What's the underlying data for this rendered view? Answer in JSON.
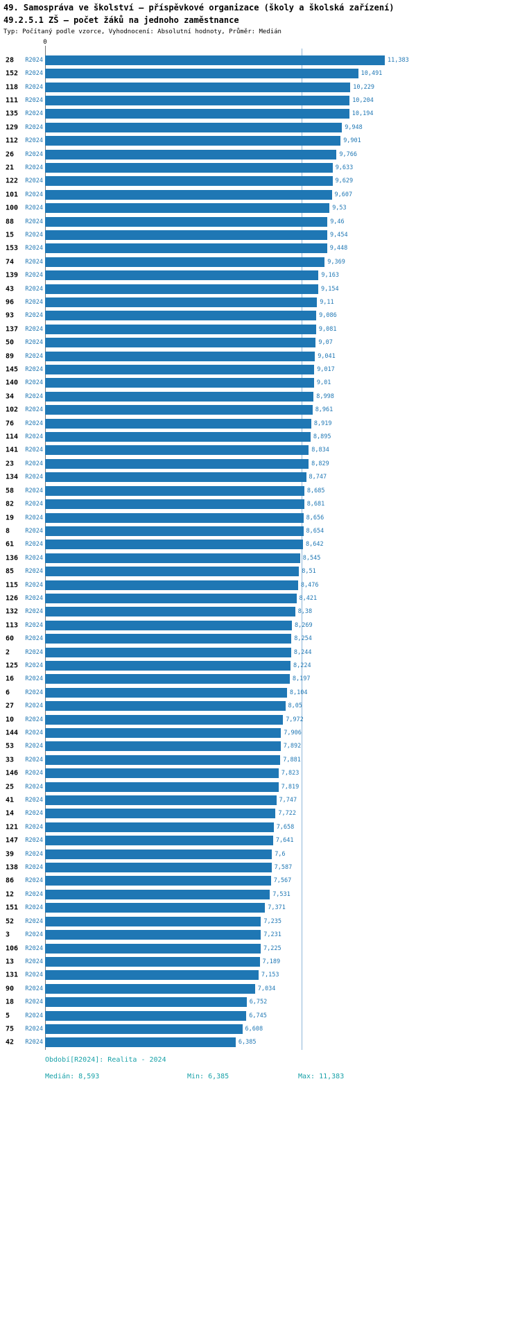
{
  "header": {
    "title_line1": "49. Samospráva ve školství – příspěvkové organizace (školy a školská zařízení)",
    "title_line2": "49.2.5.1 ZŠ – počet žáků na jednoho zaměstnance",
    "subtitle": "Typ: Počítaný podle vzorce, Vyhodnocení: Absolutní hodnoty, Průměr: Medián"
  },
  "axis": {
    "zero_label": "0"
  },
  "footer": {
    "period": "Období[R2024]: Realita - 2024",
    "median": "Medián: 8,593",
    "min": "Min: 6,385",
    "max": "Max: 11,383"
  },
  "colors": {
    "bar": "#1f77b4",
    "id_label": "#000000",
    "period_label": "#1f77b4",
    "value_label": "#1f77b4",
    "median_line": "#8db6d9",
    "footer_text": "#18a1a8"
  },
  "chart_data": {
    "type": "bar",
    "orientation": "horizontal",
    "title": "49.2.5.1 ZŠ – počet žáků na jednoho zaměstnance",
    "period_label": "R2024",
    "xlim": [
      0,
      11.383
    ],
    "median": 8.593,
    "min": 6.385,
    "max": 11.383,
    "grid": false,
    "legend": "none",
    "rows": [
      {
        "id": "28",
        "value": 11.383,
        "label": "11,383"
      },
      {
        "id": "152",
        "value": 10.491,
        "label": "10,491"
      },
      {
        "id": "118",
        "value": 10.229,
        "label": "10,229"
      },
      {
        "id": "111",
        "value": 10.204,
        "label": "10,204"
      },
      {
        "id": "135",
        "value": 10.194,
        "label": "10,194"
      },
      {
        "id": "129",
        "value": 9.948,
        "label": "9,948"
      },
      {
        "id": "112",
        "value": 9.901,
        "label": "9,901"
      },
      {
        "id": "26",
        "value": 9.766,
        "label": "9,766"
      },
      {
        "id": "21",
        "value": 9.633,
        "label": "9,633"
      },
      {
        "id": "122",
        "value": 9.629,
        "label": "9,629"
      },
      {
        "id": "101",
        "value": 9.607,
        "label": "9,607"
      },
      {
        "id": "100",
        "value": 9.53,
        "label": "9,53"
      },
      {
        "id": "88",
        "value": 9.46,
        "label": "9,46"
      },
      {
        "id": "15",
        "value": 9.454,
        "label": "9,454"
      },
      {
        "id": "153",
        "value": 9.448,
        "label": "9,448"
      },
      {
        "id": "74",
        "value": 9.369,
        "label": "9,369"
      },
      {
        "id": "139",
        "value": 9.163,
        "label": "9,163"
      },
      {
        "id": "43",
        "value": 9.154,
        "label": "9,154"
      },
      {
        "id": "96",
        "value": 9.11,
        "label": "9,11"
      },
      {
        "id": "93",
        "value": 9.086,
        "label": "9,086"
      },
      {
        "id": "137",
        "value": 9.081,
        "label": "9,081"
      },
      {
        "id": "50",
        "value": 9.07,
        "label": "9,07"
      },
      {
        "id": "89",
        "value": 9.041,
        "label": "9,041"
      },
      {
        "id": "145",
        "value": 9.017,
        "label": "9,017"
      },
      {
        "id": "140",
        "value": 9.01,
        "label": "9,01"
      },
      {
        "id": "34",
        "value": 8.998,
        "label": "8,998"
      },
      {
        "id": "102",
        "value": 8.961,
        "label": "8,961"
      },
      {
        "id": "76",
        "value": 8.919,
        "label": "8,919"
      },
      {
        "id": "114",
        "value": 8.895,
        "label": "8,895"
      },
      {
        "id": "141",
        "value": 8.834,
        "label": "8,834"
      },
      {
        "id": "23",
        "value": 8.829,
        "label": "8,829"
      },
      {
        "id": "134",
        "value": 8.747,
        "label": "8,747"
      },
      {
        "id": "58",
        "value": 8.685,
        "label": "8,685"
      },
      {
        "id": "82",
        "value": 8.681,
        "label": "8,681"
      },
      {
        "id": "19",
        "value": 8.656,
        "label": "8,656"
      },
      {
        "id": "8",
        "value": 8.654,
        "label": "8,654"
      },
      {
        "id": "61",
        "value": 8.642,
        "label": "8,642"
      },
      {
        "id": "136",
        "value": 8.545,
        "label": "8,545"
      },
      {
        "id": "85",
        "value": 8.51,
        "label": "8,51"
      },
      {
        "id": "115",
        "value": 8.476,
        "label": "8,476"
      },
      {
        "id": "126",
        "value": 8.421,
        "label": "8,421"
      },
      {
        "id": "132",
        "value": 8.38,
        "label": "8,38"
      },
      {
        "id": "113",
        "value": 8.269,
        "label": "8,269"
      },
      {
        "id": "60",
        "value": 8.254,
        "label": "8,254"
      },
      {
        "id": "2",
        "value": 8.244,
        "label": "8,244"
      },
      {
        "id": "125",
        "value": 8.224,
        "label": "8,224"
      },
      {
        "id": "16",
        "value": 8.197,
        "label": "8,197"
      },
      {
        "id": "6",
        "value": 8.104,
        "label": "8,104"
      },
      {
        "id": "27",
        "value": 8.05,
        "label": "8,05"
      },
      {
        "id": "10",
        "value": 7.972,
        "label": "7,972"
      },
      {
        "id": "144",
        "value": 7.906,
        "label": "7,906"
      },
      {
        "id": "53",
        "value": 7.892,
        "label": "7,892"
      },
      {
        "id": "33",
        "value": 7.881,
        "label": "7,881"
      },
      {
        "id": "146",
        "value": 7.823,
        "label": "7,823"
      },
      {
        "id": "25",
        "value": 7.819,
        "label": "7,819"
      },
      {
        "id": "41",
        "value": 7.747,
        "label": "7,747"
      },
      {
        "id": "14",
        "value": 7.722,
        "label": "7,722"
      },
      {
        "id": "121",
        "value": 7.658,
        "label": "7,658"
      },
      {
        "id": "147",
        "value": 7.641,
        "label": "7,641"
      },
      {
        "id": "39",
        "value": 7.6,
        "label": "7,6"
      },
      {
        "id": "138",
        "value": 7.587,
        "label": "7,587"
      },
      {
        "id": "86",
        "value": 7.567,
        "label": "7,567"
      },
      {
        "id": "12",
        "value": 7.531,
        "label": "7,531"
      },
      {
        "id": "151",
        "value": 7.371,
        "label": "7,371"
      },
      {
        "id": "52",
        "value": 7.235,
        "label": "7,235"
      },
      {
        "id": "3",
        "value": 7.231,
        "label": "7,231"
      },
      {
        "id": "106",
        "value": 7.225,
        "label": "7,225"
      },
      {
        "id": "13",
        "value": 7.189,
        "label": "7,189"
      },
      {
        "id": "131",
        "value": 7.153,
        "label": "7,153"
      },
      {
        "id": "90",
        "value": 7.034,
        "label": "7,034"
      },
      {
        "id": "18",
        "value": 6.752,
        "label": "6,752"
      },
      {
        "id": "5",
        "value": 6.745,
        "label": "6,745"
      },
      {
        "id": "75",
        "value": 6.608,
        "label": "6,608"
      },
      {
        "id": "42",
        "value": 6.385,
        "label": "6,385"
      }
    ]
  }
}
